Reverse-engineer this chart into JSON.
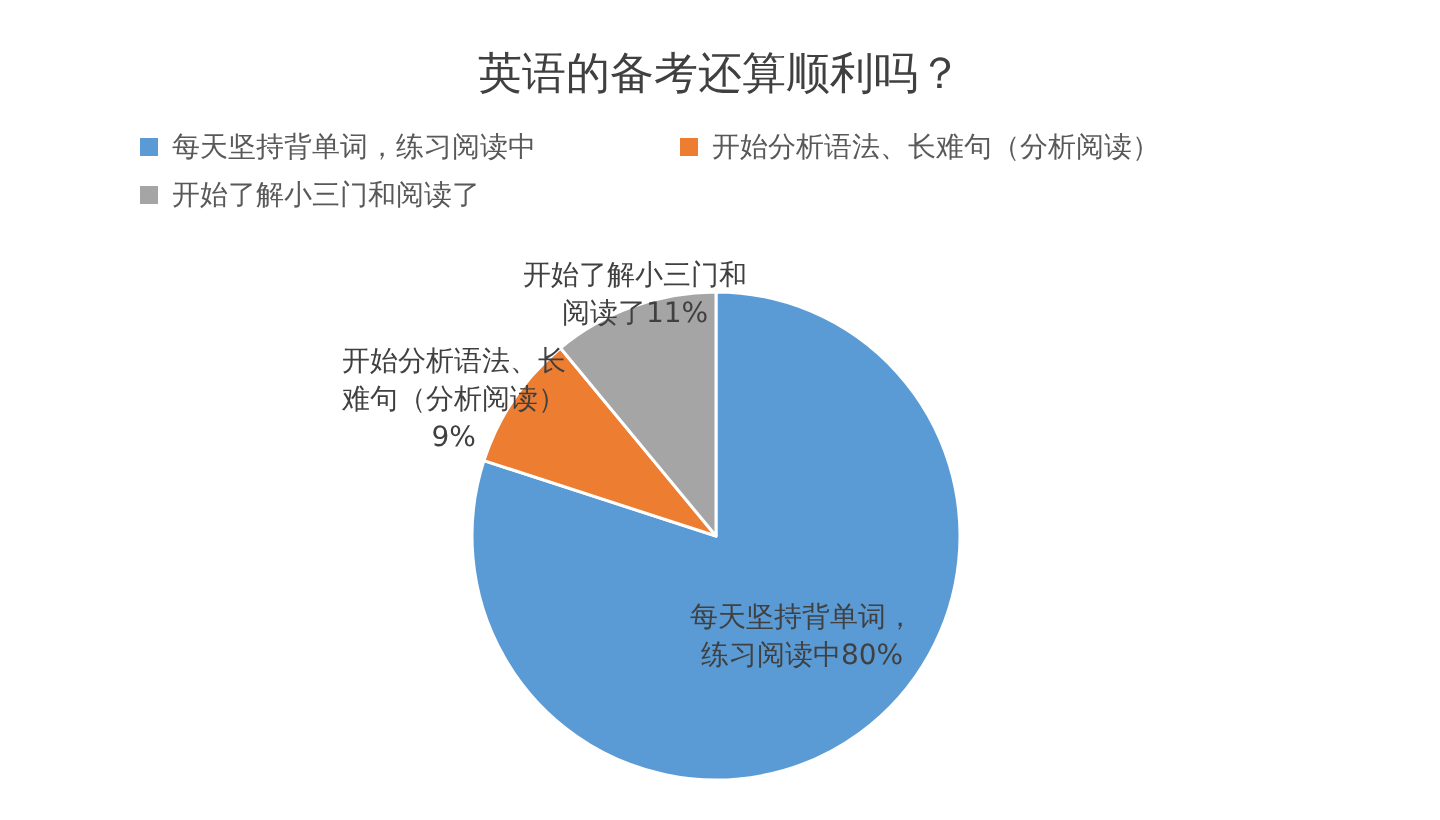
{
  "chart_data": {
    "type": "pie",
    "title": "英语的备考还算顺利吗？",
    "categories": [
      "每天坚持背单词，练习阅读中",
      "开始分析语法、长难句（分析阅读）",
      "开始了解小三门和阅读了"
    ],
    "values": [
      80,
      9,
      11
    ],
    "colors": [
      "#5b9bd5",
      "#ed7d31",
      "#a5a5a5"
    ],
    "value_labels": [
      "80%",
      "9%",
      "11%"
    ],
    "legend": "top"
  }
}
